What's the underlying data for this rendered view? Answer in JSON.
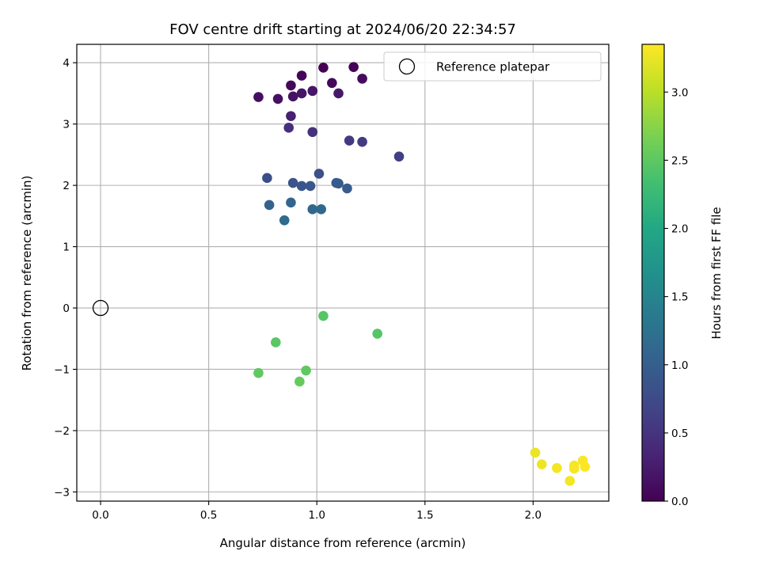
{
  "chart_data": {
    "type": "scatter",
    "title": "FOV centre drift starting at 2024/06/20 22:34:57",
    "xlabel": "Angular distance from reference (arcmin)",
    "ylabel": "Rotation from reference (arcmin)",
    "xlim": [
      -0.11,
      2.35
    ],
    "ylim": [
      -3.15,
      4.3
    ],
    "x_ticks": [
      0.0,
      0.5,
      1.0,
      1.5,
      2.0
    ],
    "x_tick_labels": [
      "0.0",
      "0.5",
      "1.0",
      "1.5",
      "2.0"
    ],
    "y_ticks": [
      -3,
      -2,
      -1,
      0,
      1,
      2,
      3,
      4
    ],
    "y_tick_labels": [
      "−3",
      "−2",
      "−1",
      "0",
      "1",
      "2",
      "3",
      "4"
    ],
    "grid": true,
    "legend": {
      "placement": "upper right",
      "entries": [
        "Reference platepar"
      ]
    },
    "reference": {
      "label": "Reference platepar",
      "x": 0.0,
      "y": 0.0,
      "marker": "open-circle"
    },
    "colorbar": {
      "label": "Hours from first FF file",
      "colormap": "viridis",
      "range": [
        0.0,
        3.35
      ],
      "ticks": [
        0.0,
        0.5,
        1.0,
        1.5,
        2.0,
        2.5,
        3.0
      ],
      "tick_labels": [
        "0.0",
        "0.5",
        "1.0",
        "1.5",
        "2.0",
        "2.5",
        "3.0"
      ]
    },
    "points": [
      {
        "x": 1.03,
        "y": 3.92,
        "hours": 0.0
      },
      {
        "x": 1.17,
        "y": 3.93,
        "hours": 0.02
      },
      {
        "x": 0.93,
        "y": 3.79,
        "hours": 0.04
      },
      {
        "x": 0.88,
        "y": 3.63,
        "hours": 0.06
      },
      {
        "x": 1.07,
        "y": 3.67,
        "hours": 0.08
      },
      {
        "x": 1.21,
        "y": 3.74,
        "hours": 0.1
      },
      {
        "x": 0.73,
        "y": 3.44,
        "hours": 0.12
      },
      {
        "x": 0.82,
        "y": 3.41,
        "hours": 0.14
      },
      {
        "x": 0.89,
        "y": 3.45,
        "hours": 0.16
      },
      {
        "x": 0.93,
        "y": 3.5,
        "hours": 0.18
      },
      {
        "x": 0.98,
        "y": 3.54,
        "hours": 0.2
      },
      {
        "x": 1.1,
        "y": 3.5,
        "hours": 0.22
      },
      {
        "x": 0.88,
        "y": 3.13,
        "hours": 0.3
      },
      {
        "x": 0.87,
        "y": 2.94,
        "hours": 0.45
      },
      {
        "x": 0.98,
        "y": 2.87,
        "hours": 0.48
      },
      {
        "x": 1.15,
        "y": 2.73,
        "hours": 0.55
      },
      {
        "x": 1.21,
        "y": 2.71,
        "hours": 0.58
      },
      {
        "x": 1.38,
        "y": 2.47,
        "hours": 0.62
      },
      {
        "x": 0.77,
        "y": 2.12,
        "hours": 0.8
      },
      {
        "x": 1.01,
        "y": 2.19,
        "hours": 0.82
      },
      {
        "x": 0.89,
        "y": 2.04,
        "hours": 0.85
      },
      {
        "x": 0.93,
        "y": 1.99,
        "hours": 0.88
      },
      {
        "x": 0.97,
        "y": 1.99,
        "hours": 0.9
      },
      {
        "x": 1.09,
        "y": 2.04,
        "hours": 0.92
      },
      {
        "x": 1.1,
        "y": 2.03,
        "hours": 0.95
      },
      {
        "x": 1.14,
        "y": 1.95,
        "hours": 0.98
      },
      {
        "x": 0.78,
        "y": 1.68,
        "hours": 1.05
      },
      {
        "x": 0.88,
        "y": 1.72,
        "hours": 1.08
      },
      {
        "x": 0.98,
        "y": 1.61,
        "hours": 1.1
      },
      {
        "x": 1.02,
        "y": 1.61,
        "hours": 1.12
      },
      {
        "x": 0.85,
        "y": 1.43,
        "hours": 1.15
      },
      {
        "x": 1.03,
        "y": -0.13,
        "hours": 2.45
      },
      {
        "x": 1.28,
        "y": -0.42,
        "hours": 2.45
      },
      {
        "x": 0.81,
        "y": -0.56,
        "hours": 2.48
      },
      {
        "x": 0.73,
        "y": -1.06,
        "hours": 2.52
      },
      {
        "x": 0.95,
        "y": -1.02,
        "hours": 2.52
      },
      {
        "x": 0.92,
        "y": -1.2,
        "hours": 2.55
      },
      {
        "x": 2.01,
        "y": -2.36,
        "hours": 3.25
      },
      {
        "x": 2.04,
        "y": -2.55,
        "hours": 3.27
      },
      {
        "x": 2.11,
        "y": -2.61,
        "hours": 3.29
      },
      {
        "x": 2.17,
        "y": -2.82,
        "hours": 3.3
      },
      {
        "x": 2.19,
        "y": -2.57,
        "hours": 3.31
      },
      {
        "x": 2.19,
        "y": -2.62,
        "hours": 3.32
      },
      {
        "x": 2.23,
        "y": -2.49,
        "hours": 3.33
      },
      {
        "x": 2.24,
        "y": -2.59,
        "hours": 3.35
      }
    ]
  }
}
